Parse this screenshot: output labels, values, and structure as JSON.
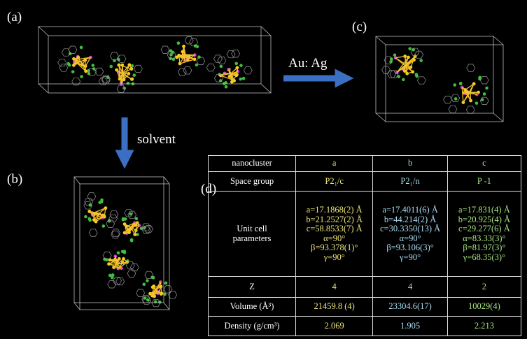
{
  "panels": {
    "a": "(a)",
    "b": "(b)",
    "c": "(c)",
    "d": "(d)"
  },
  "arrows": {
    "horizontal": "Au: Ag",
    "vertical": "solvent"
  },
  "table": {
    "header": [
      "nanocluster",
      "a",
      "b",
      "c"
    ],
    "rows": [
      [
        "Space group",
        "P2₁/c",
        "P2₁/n",
        "P -1"
      ],
      [
        [
          "Unit cell",
          "parameters"
        ],
        [
          "a=17.1868(2) Å",
          "b=21.2527(2) Å",
          "c=58.8533(7) Å",
          "α=90°",
          "β=93.378(1)°",
          "γ=90°"
        ],
        [
          "a=17.4011(6) Å",
          "b=44.214(2) Å",
          "c=30.3350(13) Å",
          "α=90°",
          "β=93.106(3)°",
          "γ=90°"
        ],
        [
          "a=17.831(4) Å",
          "b=20.925(4) Å",
          "c=29.277(6) Å",
          "α=83.33(3)°",
          "β=81.97(3)°",
          "γ=68.35(3)°"
        ]
      ],
      [
        "Z",
        "4",
        "4",
        "2"
      ],
      [
        "Volume (Å³)",
        "21459.8 (4)",
        "23304.6(17)",
        "10029(4)"
      ],
      [
        "Density (g/cm³)",
        "2.069",
        "1.905",
        "2.213"
      ]
    ]
  }
}
